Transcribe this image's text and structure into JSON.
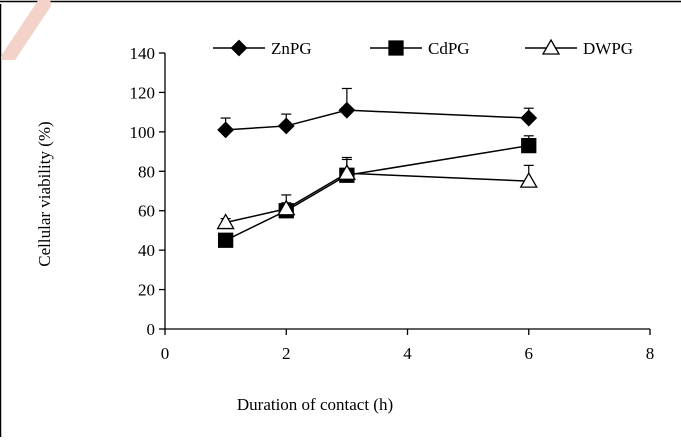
{
  "chart_data": {
    "type": "line",
    "title": "",
    "xlabel": "Duration of contact (h)",
    "ylabel": "Cellular viability (%)",
    "xlim": [
      0,
      8
    ],
    "ylim": [
      0,
      140
    ],
    "xticks": [
      0,
      2,
      4,
      6,
      8
    ],
    "yticks": [
      0,
      20,
      40,
      60,
      80,
      100,
      120,
      140
    ],
    "grid": false,
    "legend_position": "top",
    "series": [
      {
        "name": "ZnPG",
        "marker": "filled-diamond",
        "color": "#000000",
        "x": [
          1,
          2,
          3,
          6
        ],
        "y": [
          101,
          103,
          111,
          107
        ],
        "err": [
          6,
          6,
          11,
          5
        ]
      },
      {
        "name": "CdPG",
        "marker": "filled-square",
        "color": "#000000",
        "x": [
          1,
          2,
          3,
          6
        ],
        "y": [
          45,
          60,
          78,
          93
        ],
        "err": [
          3,
          4,
          9,
          5
        ]
      },
      {
        "name": "DWPG",
        "marker": "open-triangle",
        "color": "#000000",
        "x": [
          1,
          2,
          3,
          6
        ],
        "y": [
          54,
          61,
          79,
          75
        ],
        "err": [
          2,
          7,
          7,
          8
        ]
      }
    ]
  }
}
